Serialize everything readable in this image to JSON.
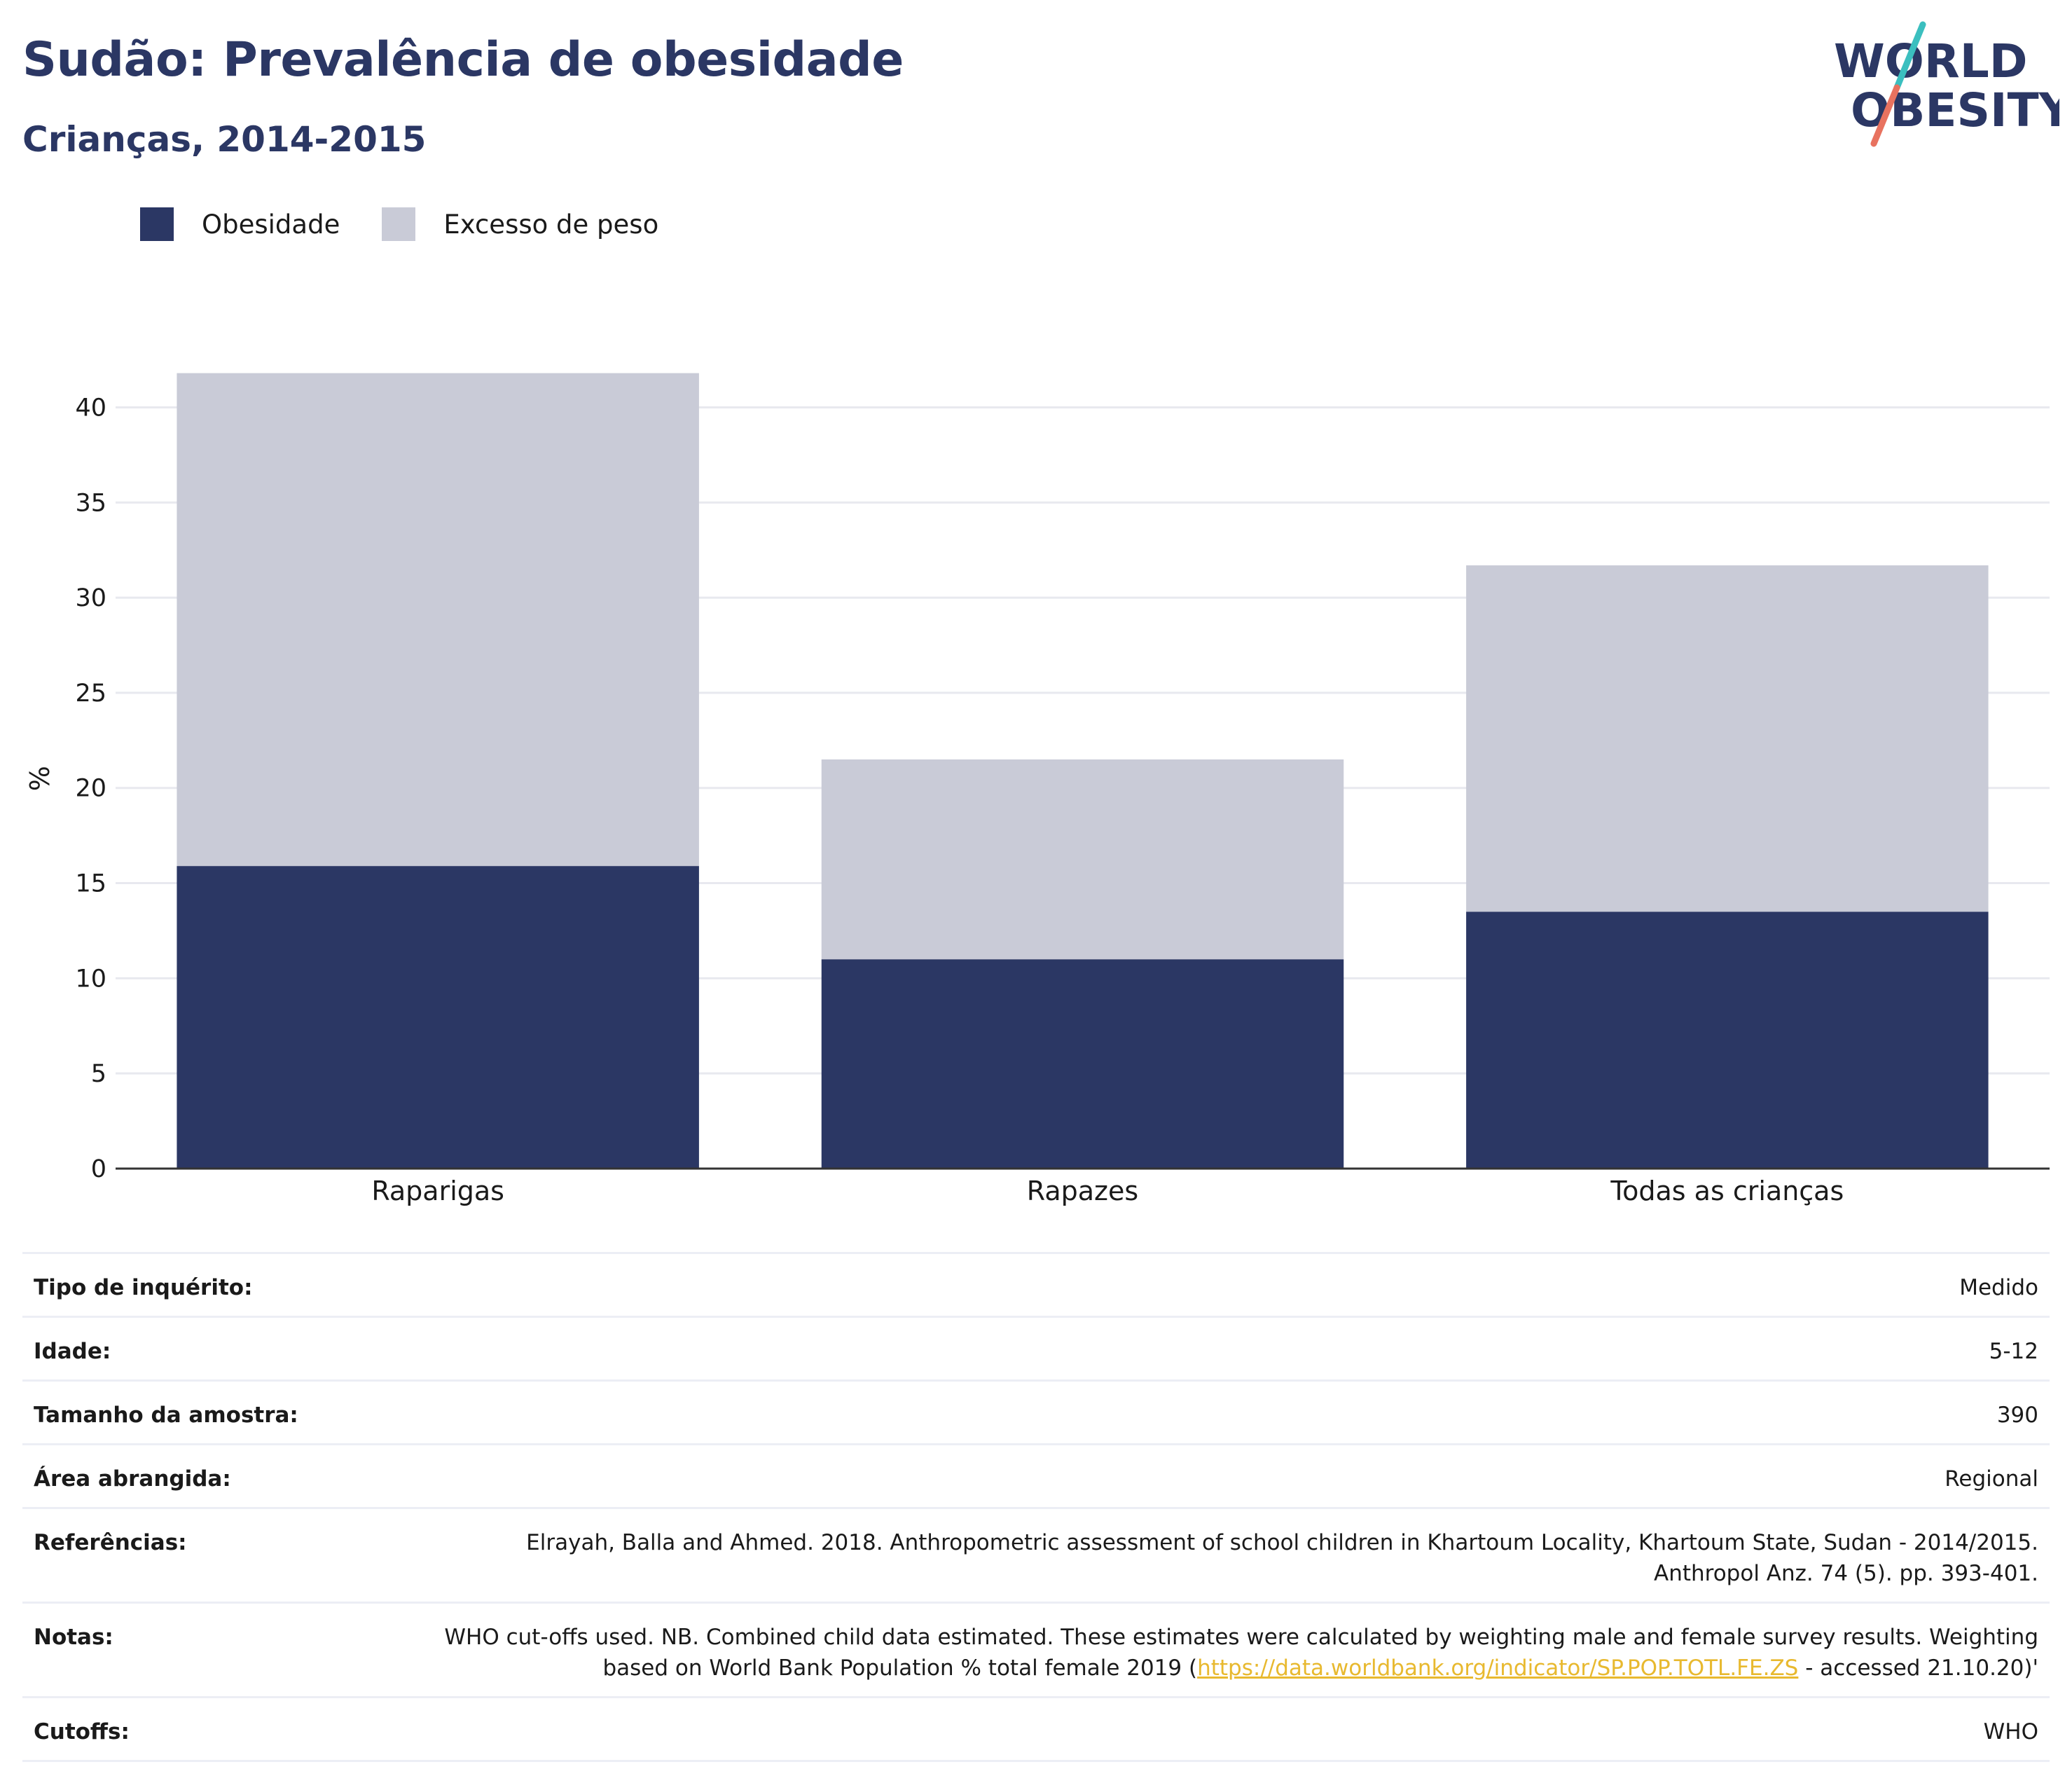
{
  "header": {
    "title": "Sudão: Prevalência de obesidade",
    "subtitle": "Crianças, 2014-2015"
  },
  "logo": {
    "line1": "WORLD",
    "line2": "OBESITY"
  },
  "chart_data": {
    "type": "bar",
    "stacked": true,
    "categories": [
      "Raparigas",
      "Rapazes",
      "Todas as crianças"
    ],
    "series": [
      {
        "name": "Obesidade",
        "values": [
          15.9,
          11.0,
          13.5
        ],
        "color": "#2b3764"
      },
      {
        "name": "Excesso de peso",
        "values": [
          25.9,
          10.5,
          18.2
        ],
        "color": "#c9cbd7"
      }
    ],
    "ylabel": "%",
    "ylim": [
      0,
      43
    ],
    "yticks": [
      0,
      5,
      10,
      15,
      20,
      25,
      30,
      35,
      40
    ],
    "grid": true,
    "legend_position": "top-left"
  },
  "info": {
    "rows": [
      {
        "label": "Tipo de inquérito:",
        "value": "Medido"
      },
      {
        "label": "Idade:",
        "value": "5-12"
      },
      {
        "label": "Tamanho da amostra:",
        "value": "390"
      },
      {
        "label": "Área abrangida:",
        "value": "Regional"
      },
      {
        "label": "Referências:",
        "value": "Elrayah, Balla and Ahmed. 2018. Anthropometric assessment of school children in Khartoum Locality, Khartoum State, Sudan - 2014/2015. Anthropol Anz. 74 (5). pp. 393-401."
      }
    ],
    "notes": {
      "label": "Notas:",
      "before": "WHO cut-offs used. NB. Combined child data estimated. These estimates were calculated by weighting male and female survey results. Weighting based on World Bank Population % total female 2019 (",
      "link": "https://data.worldbank.org/indicator/SP.POP.TOTL.FE.ZS",
      "after": " - accessed 21.10.20)'"
    },
    "cutoffs": {
      "label": "Cutoffs:",
      "value": "WHO"
    }
  }
}
